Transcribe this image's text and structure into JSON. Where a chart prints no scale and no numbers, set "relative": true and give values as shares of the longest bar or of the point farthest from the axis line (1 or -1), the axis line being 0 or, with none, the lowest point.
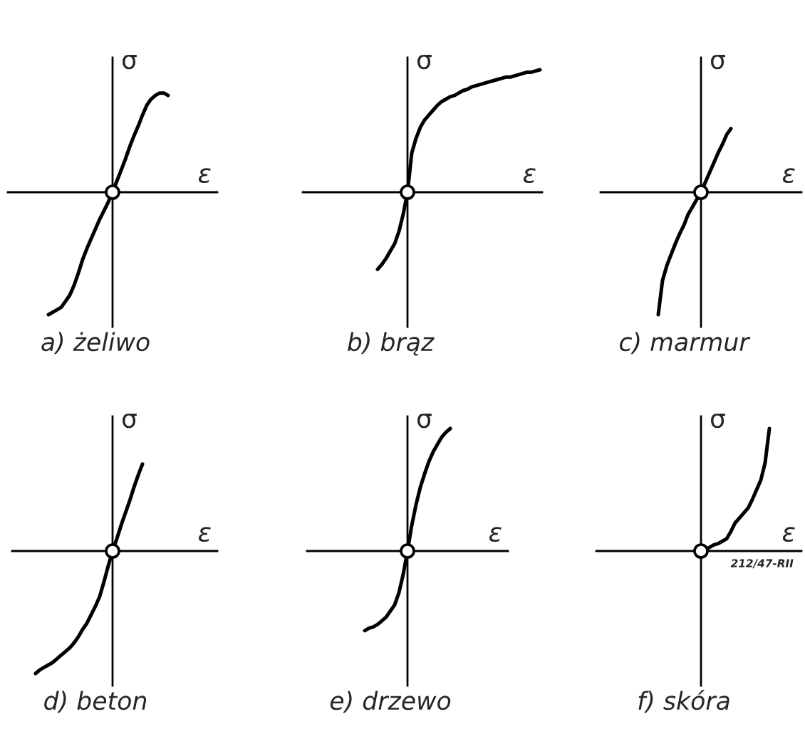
{
  "chart_data": [
    {
      "type": "line",
      "title": "a) żeliwo",
      "xlabel": "ε",
      "ylabel": "σ",
      "relative": true,
      "categories": [
        null,
        null,
        null,
        null,
        null,
        null,
        null,
        null,
        null,
        null,
        null,
        null,
        null,
        null,
        null,
        null,
        null,
        null,
        null,
        null,
        null,
        null,
        null,
        null,
        null,
        null,
        null,
        null,
        null,
        null,
        null,
        null,
        null,
        null,
        null,
        null,
        null,
        null,
        null,
        null,
        null,
        null,
        null,
        null,
        null,
        null,
        null,
        null,
        null
      ],
      "series": [
        {
          "color": "#000000",
          "values": [
            null,
            null,
            null,
            null,
            null,
            null,
            null,
            null,
            null,
            -1,
            -0.98,
            -0.96,
            -0.94,
            -0.89,
            -0.84,
            -0.76,
            -0.66,
            -0.55,
            -0.46,
            -0.38,
            -0.3,
            -0.22,
            -0.15,
            -0.08,
            0,
            0.09,
            0.18,
            0.27,
            0.37,
            0.46,
            0.54,
            0.63,
            0.71,
            0.76,
            0.79,
            0.81,
            0.81,
            0.79,
            null,
            null,
            null,
            null,
            null,
            null,
            null,
            null,
            null,
            null,
            null
          ]
        }
      ]
    },
    {
      "type": "line",
      "title": "b) brąz",
      "xlabel": "ε",
      "ylabel": "σ",
      "relative": true,
      "categories": [
        null,
        null,
        null,
        null,
        null,
        null,
        null,
        null,
        null,
        null,
        null,
        null,
        null,
        null,
        null,
        null,
        null,
        null,
        null,
        null,
        null,
        null,
        null,
        null,
        null,
        null,
        null,
        null,
        null,
        null,
        null,
        null,
        null,
        null,
        null,
        null,
        null,
        null,
        null,
        null,
        null,
        null,
        null,
        null,
        null,
        null,
        null,
        null,
        null,
        null,
        null,
        null,
        null,
        null,
        null,
        null
      ],
      "series": [
        {
          "color": "#000000",
          "values": [
            null,
            null,
            null,
            null,
            null,
            null,
            null,
            null,
            null,
            null,
            null,
            null,
            null,
            null,
            null,
            null,
            null,
            -0.63,
            -0.59,
            -0.54,
            -0.48,
            -0.42,
            -0.32,
            -0.18,
            0,
            0.32,
            0.44,
            0.53,
            0.59,
            0.63,
            0.67,
            0.71,
            0.74,
            0.76,
            0.78,
            0.79,
            0.81,
            0.83,
            0.84,
            0.86,
            0.87,
            0.88,
            0.89,
            0.9,
            0.91,
            0.92,
            0.93,
            0.94,
            0.94,
            0.95,
            0.96,
            0.97,
            0.98,
            0.98,
            0.99,
            1
          ]
        }
      ]
    },
    {
      "type": "line",
      "title": "c) marmur",
      "xlabel": "ε",
      "ylabel": "σ",
      "relative": true,
      "categories": [
        null,
        null,
        null,
        null,
        null,
        null,
        null,
        null,
        null,
        null,
        null,
        null,
        null,
        null,
        null,
        null,
        null,
        null,
        null,
        null,
        null,
        null,
        null,
        null,
        null,
        null,
        null,
        null,
        null,
        null,
        null,
        null,
        null,
        null,
        null,
        null,
        null,
        null,
        null,
        null,
        null,
        null,
        null,
        null,
        null,
        null,
        null
      ],
      "series": [
        {
          "color": "#000000",
          "values": [
            null,
            null,
            null,
            null,
            null,
            null,
            null,
            null,
            null,
            null,
            null,
            null,
            null,
            -1,
            -0.72,
            -0.6,
            -0.51,
            -0.42,
            -0.34,
            -0.27,
            -0.18,
            -0.12,
            -0.06,
            0,
            0.08,
            0.16,
            0.24,
            0.32,
            0.39,
            0.47,
            0.52,
            null,
            null,
            null,
            null,
            null,
            null,
            null,
            null,
            null,
            null,
            null,
            null,
            null,
            null,
            null,
            null
          ]
        }
      ]
    },
    {
      "type": "line",
      "title": "d) beton",
      "xlabel": "ε",
      "ylabel": "σ",
      "relative": true,
      "categories": [
        null,
        null,
        null,
        null,
        null,
        null,
        null,
        null,
        null,
        null,
        null,
        null,
        null,
        null,
        null,
        null,
        null,
        null,
        null,
        null,
        null,
        null,
        null,
        null,
        null,
        null,
        null,
        null,
        null,
        null,
        null,
        null,
        null,
        null,
        null,
        null,
        null,
        null,
        null,
        null,
        null,
        null,
        null,
        null,
        null,
        null,
        null,
        null
      ],
      "series": [
        {
          "color": "#000000",
          "values": [
            null,
            null,
            null,
            null,
            null,
            -1,
            -0.97,
            -0.95,
            -0.93,
            -0.91,
            -0.88,
            -0.85,
            -0.82,
            -0.79,
            -0.75,
            -0.7,
            -0.64,
            -0.59,
            -0.52,
            -0.45,
            -0.37,
            -0.25,
            -0.12,
            0,
            0.1,
            0.21,
            0.31,
            0.41,
            0.52,
            0.62,
            0.71,
            null,
            null,
            null,
            null,
            null,
            null,
            null,
            null,
            null,
            null,
            null,
            null,
            null,
            null,
            null,
            null,
            null
          ]
        }
      ]
    },
    {
      "type": "line",
      "title": "e) drzewo",
      "xlabel": "ε",
      "ylabel": "σ",
      "relative": true,
      "categories": [
        null,
        null,
        null,
        null,
        null,
        null,
        null,
        null,
        null,
        null,
        null,
        null,
        null,
        null,
        null,
        null,
        null,
        null,
        null,
        null,
        null,
        null,
        null,
        null,
        null,
        null,
        null,
        null,
        null,
        null,
        null,
        null,
        null,
        null,
        null,
        null,
        null,
        null,
        null,
        null,
        null,
        null,
        null,
        null,
        null,
        null,
        null
      ],
      "series": [
        {
          "color": "#000000",
          "values": [
            null,
            null,
            null,
            null,
            null,
            null,
            null,
            null,
            null,
            null,
            null,
            null,
            null,
            -0.65,
            -0.63,
            -0.62,
            -0.6,
            -0.57,
            -0.54,
            -0.49,
            -0.44,
            -0.34,
            -0.19,
            0,
            0.21,
            0.38,
            0.52,
            0.63,
            0.73,
            0.81,
            0.87,
            0.93,
            0.97,
            1,
            null,
            null,
            null,
            null,
            null,
            null,
            null,
            null,
            null,
            null,
            null,
            null,
            null
          ]
        }
      ]
    },
    {
      "type": "line",
      "title": "f) skóra",
      "xlabel": "ε",
      "ylabel": "σ",
      "relative": true,
      "annotations": [
        "212/47-RII"
      ],
      "categories": [
        null,
        null,
        null,
        null,
        null,
        null,
        null,
        null,
        null,
        null,
        null,
        null,
        null,
        null,
        null,
        null,
        null,
        null,
        null,
        null,
        null,
        null,
        null,
        null,
        null,
        null,
        null,
        null,
        null,
        null,
        null,
        null,
        null,
        null,
        null,
        null,
        null,
        null,
        null,
        null,
        null,
        null,
        null,
        null,
        null,
        null,
        null,
        null
      ],
      "series": [
        {
          "color": "#000000",
          "values": [
            null,
            null,
            null,
            null,
            null,
            null,
            null,
            null,
            null,
            null,
            null,
            null,
            null,
            null,
            null,
            null,
            null,
            null,
            null,
            null,
            null,
            null,
            null,
            null,
            0,
            0.01,
            0.03,
            0.05,
            0.06,
            0.08,
            0.1,
            0.16,
            0.23,
            0.27,
            0.31,
            0.35,
            0.42,
            0.5,
            0.58,
            0.72,
            1,
            null,
            null,
            null,
            null,
            null,
            null,
            null
          ]
        }
      ]
    }
  ]
}
